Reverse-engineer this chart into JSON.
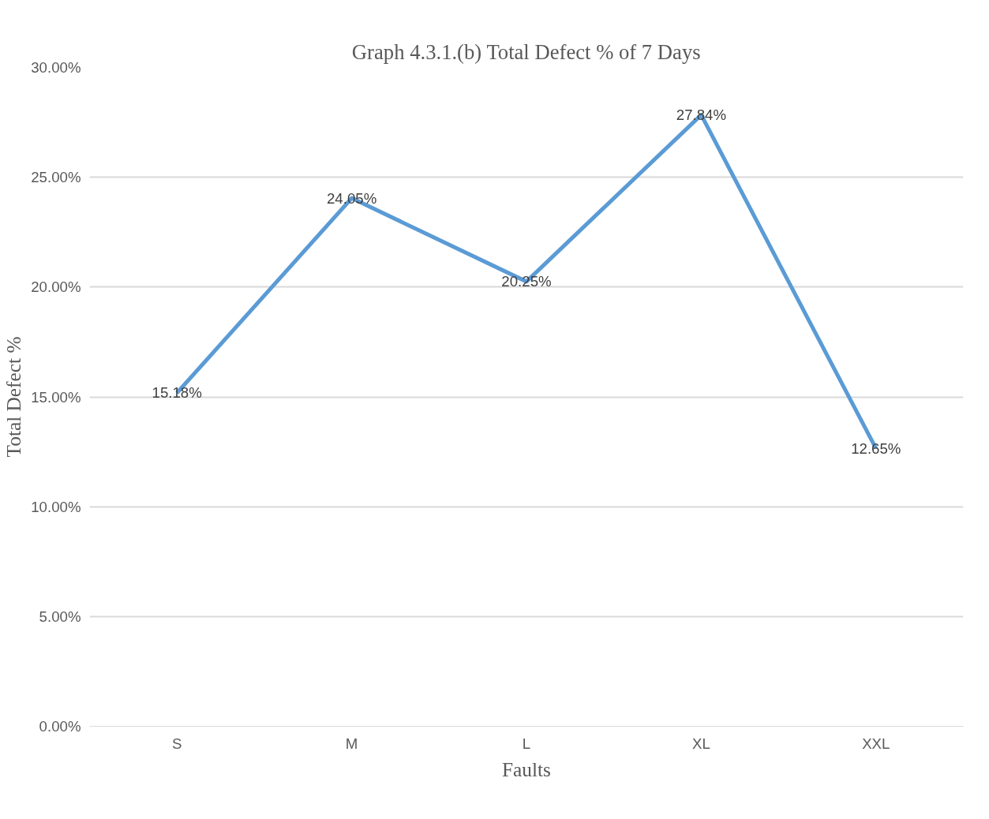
{
  "chart_data": {
    "type": "line",
    "title": "Graph 4.3.1.(b) Total Defect % of 7 Days",
    "xlabel": "Faults",
    "ylabel": "Total Defect %",
    "categories": [
      "S",
      "M",
      "L",
      "XL",
      "XXL"
    ],
    "series": [
      {
        "color": "#5b9bd5",
        "values": [
          15.18,
          24.05,
          20.25,
          27.84,
          12.65
        ],
        "value_labels": [
          "15.18%",
          "24.05%",
          "20.25%",
          "27.84%",
          "12.65%"
        ]
      }
    ],
    "ylim": [
      0,
      30
    ],
    "yticks": [
      {
        "value": 0,
        "label": "0.00%"
      },
      {
        "value": 5,
        "label": "5.00%"
      },
      {
        "value": 10,
        "label": "10.00%"
      },
      {
        "value": 15,
        "label": "15.00%"
      },
      {
        "value": 20,
        "label": "20.00%"
      },
      {
        "value": 25,
        "label": "25.00%"
      },
      {
        "value": 30,
        "label": "30.00%"
      }
    ],
    "grid": "y",
    "marker": "none",
    "line_style": "solid"
  }
}
